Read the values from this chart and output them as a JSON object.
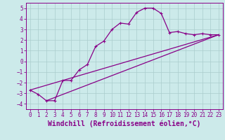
{
  "background_color": "#cceaea",
  "grid_color": "#aacccc",
  "line_color": "#880088",
  "xlabel": "Windchill (Refroidissement éolien,°C)",
  "xlabel_fontsize": 7,
  "yticks": [
    -4,
    -3,
    -2,
    -1,
    0,
    1,
    2,
    3,
    4,
    5
  ],
  "xticks": [
    0,
    1,
    2,
    3,
    4,
    5,
    6,
    7,
    8,
    9,
    10,
    11,
    12,
    13,
    14,
    15,
    16,
    17,
    18,
    19,
    20,
    21,
    22,
    23
  ],
  "xlim": [
    -0.5,
    23.5
  ],
  "ylim": [
    -4.5,
    5.5
  ],
  "curve1_x": [
    0,
    1,
    2,
    3,
    4,
    5,
    6,
    7,
    8,
    9,
    10,
    11,
    12,
    13,
    14,
    15,
    16,
    17,
    18,
    19,
    20,
    21,
    22,
    23
  ],
  "curve1_y": [
    -2.7,
    -3.1,
    -3.7,
    -3.7,
    -1.8,
    -1.8,
    -0.8,
    -0.3,
    1.4,
    1.9,
    3.0,
    3.6,
    3.5,
    4.6,
    5.0,
    5.0,
    4.5,
    2.7,
    2.8,
    2.6,
    2.5,
    2.6,
    2.5,
    2.5
  ],
  "curve2_x": [
    0,
    23
  ],
  "curve2_y": [
    -2.7,
    2.5
  ],
  "curve3_x": [
    2,
    23
  ],
  "curve3_y": [
    -3.7,
    2.5
  ],
  "tick_fontsize": 5.5,
  "ylabel_fontsize": 6
}
